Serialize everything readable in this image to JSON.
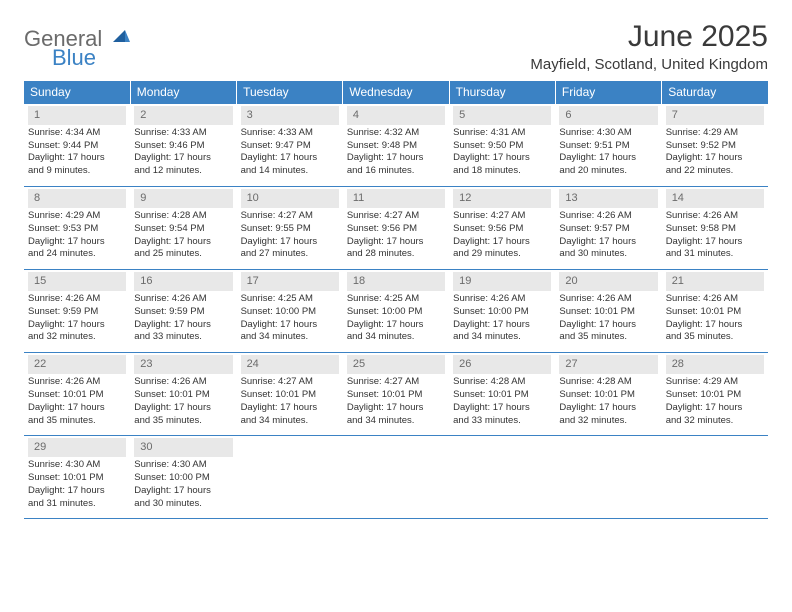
{
  "logo": {
    "general": "General",
    "blue": "Blue"
  },
  "title": "June 2025",
  "location": "Mayfield, Scotland, United Kingdom",
  "colors": {
    "header_bg": "#3b82c4",
    "header_text": "#ffffff",
    "daynum_bg": "#e8e8e8",
    "daynum_text": "#6b6b6b",
    "border": "#3b82c4",
    "logo_gray": "#6b6b6b",
    "logo_blue": "#3b82c4"
  },
  "weekdays": [
    "Sunday",
    "Monday",
    "Tuesday",
    "Wednesday",
    "Thursday",
    "Friday",
    "Saturday"
  ],
  "weeks": [
    [
      {
        "n": "1",
        "sr": "Sunrise: 4:34 AM",
        "ss": "Sunset: 9:44 PM",
        "d1": "Daylight: 17 hours",
        "d2": "and 9 minutes."
      },
      {
        "n": "2",
        "sr": "Sunrise: 4:33 AM",
        "ss": "Sunset: 9:46 PM",
        "d1": "Daylight: 17 hours",
        "d2": "and 12 minutes."
      },
      {
        "n": "3",
        "sr": "Sunrise: 4:33 AM",
        "ss": "Sunset: 9:47 PM",
        "d1": "Daylight: 17 hours",
        "d2": "and 14 minutes."
      },
      {
        "n": "4",
        "sr": "Sunrise: 4:32 AM",
        "ss": "Sunset: 9:48 PM",
        "d1": "Daylight: 17 hours",
        "d2": "and 16 minutes."
      },
      {
        "n": "5",
        "sr": "Sunrise: 4:31 AM",
        "ss": "Sunset: 9:50 PM",
        "d1": "Daylight: 17 hours",
        "d2": "and 18 minutes."
      },
      {
        "n": "6",
        "sr": "Sunrise: 4:30 AM",
        "ss": "Sunset: 9:51 PM",
        "d1": "Daylight: 17 hours",
        "d2": "and 20 minutes."
      },
      {
        "n": "7",
        "sr": "Sunrise: 4:29 AM",
        "ss": "Sunset: 9:52 PM",
        "d1": "Daylight: 17 hours",
        "d2": "and 22 minutes."
      }
    ],
    [
      {
        "n": "8",
        "sr": "Sunrise: 4:29 AM",
        "ss": "Sunset: 9:53 PM",
        "d1": "Daylight: 17 hours",
        "d2": "and 24 minutes."
      },
      {
        "n": "9",
        "sr": "Sunrise: 4:28 AM",
        "ss": "Sunset: 9:54 PM",
        "d1": "Daylight: 17 hours",
        "d2": "and 25 minutes."
      },
      {
        "n": "10",
        "sr": "Sunrise: 4:27 AM",
        "ss": "Sunset: 9:55 PM",
        "d1": "Daylight: 17 hours",
        "d2": "and 27 minutes."
      },
      {
        "n": "11",
        "sr": "Sunrise: 4:27 AM",
        "ss": "Sunset: 9:56 PM",
        "d1": "Daylight: 17 hours",
        "d2": "and 28 minutes."
      },
      {
        "n": "12",
        "sr": "Sunrise: 4:27 AM",
        "ss": "Sunset: 9:56 PM",
        "d1": "Daylight: 17 hours",
        "d2": "and 29 minutes."
      },
      {
        "n": "13",
        "sr": "Sunrise: 4:26 AM",
        "ss": "Sunset: 9:57 PM",
        "d1": "Daylight: 17 hours",
        "d2": "and 30 minutes."
      },
      {
        "n": "14",
        "sr": "Sunrise: 4:26 AM",
        "ss": "Sunset: 9:58 PM",
        "d1": "Daylight: 17 hours",
        "d2": "and 31 minutes."
      }
    ],
    [
      {
        "n": "15",
        "sr": "Sunrise: 4:26 AM",
        "ss": "Sunset: 9:59 PM",
        "d1": "Daylight: 17 hours",
        "d2": "and 32 minutes."
      },
      {
        "n": "16",
        "sr": "Sunrise: 4:26 AM",
        "ss": "Sunset: 9:59 PM",
        "d1": "Daylight: 17 hours",
        "d2": "and 33 minutes."
      },
      {
        "n": "17",
        "sr": "Sunrise: 4:25 AM",
        "ss": "Sunset: 10:00 PM",
        "d1": "Daylight: 17 hours",
        "d2": "and 34 minutes."
      },
      {
        "n": "18",
        "sr": "Sunrise: 4:25 AM",
        "ss": "Sunset: 10:00 PM",
        "d1": "Daylight: 17 hours",
        "d2": "and 34 minutes."
      },
      {
        "n": "19",
        "sr": "Sunrise: 4:26 AM",
        "ss": "Sunset: 10:00 PM",
        "d1": "Daylight: 17 hours",
        "d2": "and 34 minutes."
      },
      {
        "n": "20",
        "sr": "Sunrise: 4:26 AM",
        "ss": "Sunset: 10:01 PM",
        "d1": "Daylight: 17 hours",
        "d2": "and 35 minutes."
      },
      {
        "n": "21",
        "sr": "Sunrise: 4:26 AM",
        "ss": "Sunset: 10:01 PM",
        "d1": "Daylight: 17 hours",
        "d2": "and 35 minutes."
      }
    ],
    [
      {
        "n": "22",
        "sr": "Sunrise: 4:26 AM",
        "ss": "Sunset: 10:01 PM",
        "d1": "Daylight: 17 hours",
        "d2": "and 35 minutes."
      },
      {
        "n": "23",
        "sr": "Sunrise: 4:26 AM",
        "ss": "Sunset: 10:01 PM",
        "d1": "Daylight: 17 hours",
        "d2": "and 35 minutes."
      },
      {
        "n": "24",
        "sr": "Sunrise: 4:27 AM",
        "ss": "Sunset: 10:01 PM",
        "d1": "Daylight: 17 hours",
        "d2": "and 34 minutes."
      },
      {
        "n": "25",
        "sr": "Sunrise: 4:27 AM",
        "ss": "Sunset: 10:01 PM",
        "d1": "Daylight: 17 hours",
        "d2": "and 34 minutes."
      },
      {
        "n": "26",
        "sr": "Sunrise: 4:28 AM",
        "ss": "Sunset: 10:01 PM",
        "d1": "Daylight: 17 hours",
        "d2": "and 33 minutes."
      },
      {
        "n": "27",
        "sr": "Sunrise: 4:28 AM",
        "ss": "Sunset: 10:01 PM",
        "d1": "Daylight: 17 hours",
        "d2": "and 32 minutes."
      },
      {
        "n": "28",
        "sr": "Sunrise: 4:29 AM",
        "ss": "Sunset: 10:01 PM",
        "d1": "Daylight: 17 hours",
        "d2": "and 32 minutes."
      }
    ],
    [
      {
        "n": "29",
        "sr": "Sunrise: 4:30 AM",
        "ss": "Sunset: 10:01 PM",
        "d1": "Daylight: 17 hours",
        "d2": "and 31 minutes."
      },
      {
        "n": "30",
        "sr": "Sunrise: 4:30 AM",
        "ss": "Sunset: 10:00 PM",
        "d1": "Daylight: 17 hours",
        "d2": "and 30 minutes."
      },
      null,
      null,
      null,
      null,
      null
    ]
  ]
}
